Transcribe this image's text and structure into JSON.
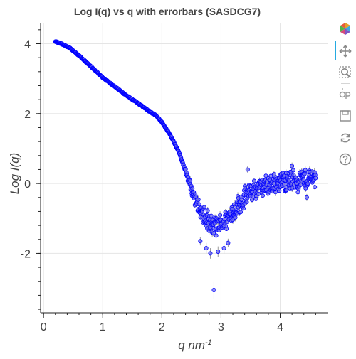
{
  "chart_data": {
    "type": "scatter",
    "title": "Log I(q) vs q with errorbars (SASDCG7)",
    "xlabel_main": "q nm",
    "xlabel_sup": "-1",
    "ylabel": "Log I(q)",
    "xlim": [
      -0.05,
      4.8
    ],
    "ylim": [
      -3.7,
      4.6
    ],
    "xticks": [
      0,
      1,
      2,
      3,
      4
    ],
    "yticks": [
      -2,
      0,
      2,
      4
    ],
    "ytick_labels": [
      "-2",
      "0",
      "2",
      "4"
    ],
    "grid": true,
    "marker_color": "#0000ff",
    "marker_fill": "#6b6bf0",
    "errorbar_color": "#9a9a9a",
    "curve": {
      "q_nodes": [
        0.2,
        0.3,
        0.45,
        0.6,
        0.8,
        1.0,
        1.2,
        1.4,
        1.6,
        1.8,
        1.9,
        2.0,
        2.1,
        2.2,
        2.3,
        2.4,
        2.5,
        2.6,
        2.7,
        2.8,
        2.9,
        3.0,
        3.1,
        3.2,
        3.3,
        3.4,
        3.5,
        3.6,
        3.7,
        3.8,
        3.9,
        4.0,
        4.1,
        4.2,
        4.3,
        4.4,
        4.5,
        4.6
      ],
      "logI_nodes": [
        4.06,
        4.0,
        3.87,
        3.66,
        3.35,
        3.03,
        2.78,
        2.52,
        2.29,
        2.05,
        1.95,
        1.75,
        1.5,
        1.2,
        0.85,
        0.35,
        -0.15,
        -0.6,
        -0.95,
        -1.15,
        -1.25,
        -1.15,
        -1.0,
        -0.8,
        -0.6,
        -0.4,
        -0.25,
        -0.15,
        -0.1,
        -0.05,
        0.0,
        0.05,
        0.08,
        0.1,
        0.12,
        0.12,
        0.15,
        0.2
      ],
      "q_start": 0.2,
      "q_step": 0.006,
      "q_end": 4.6,
      "scatter_start_q": 2.3,
      "scatter_amplitude": 0.35
    },
    "outliers": [
      {
        "q": 2.88,
        "logI": -3.05,
        "err": 0.25
      },
      {
        "q": 2.82,
        "logI": -2.0,
        "err": 0.15
      },
      {
        "q": 2.95,
        "logI": -1.95,
        "err": 0.15
      },
      {
        "q": 3.05,
        "logI": -1.85,
        "err": 0.15
      },
      {
        "q": 2.75,
        "logI": -1.85,
        "err": 0.15
      },
      {
        "q": 2.65,
        "logI": -1.65,
        "err": 0.12
      },
      {
        "q": 3.12,
        "logI": -1.7,
        "err": 0.12
      },
      {
        "q": 3.45,
        "logI": 0.4,
        "err": 0.1
      },
      {
        "q": 4.2,
        "logI": 0.5,
        "err": 0.1
      },
      {
        "q": 4.1,
        "logI": 0.3,
        "err": 0.1
      },
      {
        "q": 4.45,
        "logI": -0.4,
        "err": 0.1
      },
      {
        "q": 4.3,
        "logI": -0.25,
        "err": 0.1
      }
    ]
  },
  "toolbar": {
    "tools": [
      {
        "name": "bokeh-logo-icon"
      },
      {
        "name": "pan-tool-icon"
      },
      {
        "name": "box-zoom-tool-icon"
      },
      {
        "name": "hover-tool-icon"
      },
      {
        "name": "save-tool-icon"
      },
      {
        "name": "reset-tool-icon"
      },
      {
        "name": "help-tool-icon"
      }
    ]
  }
}
